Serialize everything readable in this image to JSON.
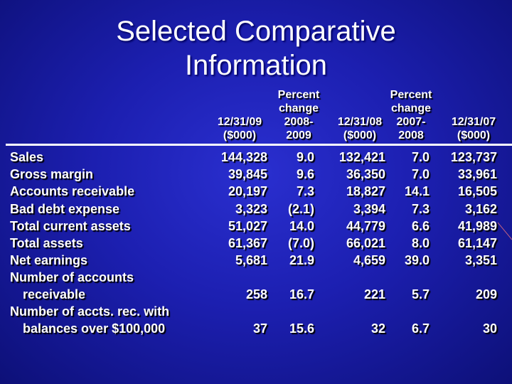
{
  "title_line1": "Selected Comparative",
  "title_line2": "Information",
  "columns": [
    [
      "12/31/09",
      "($000)"
    ],
    [
      "Percent",
      "change",
      "2008-",
      "2009"
    ],
    [
      "12/31/08",
      "($000)"
    ],
    [
      "Percent",
      "change",
      "2007-",
      "2008"
    ],
    [
      "12/31/07",
      "($000)"
    ]
  ],
  "rows": [
    {
      "label": [
        "Sales"
      ],
      "values": [
        "144,328",
        "9.0",
        "132,421",
        "7.0",
        "123,737"
      ]
    },
    {
      "label": [
        "Gross margin"
      ],
      "values": [
        "39,845",
        "9.6",
        "36,350",
        "7.0",
        "33,961"
      ]
    },
    {
      "label": [
        "Accounts receivable"
      ],
      "values": [
        "20,197",
        "7.3",
        "18,827",
        "14.1",
        "16,505"
      ]
    },
    {
      "label": [
        "Bad debt expense"
      ],
      "values": [
        "3,323",
        "(2.1)",
        "3,394",
        "7.3",
        "3,162"
      ]
    },
    {
      "label": [
        "Total current assets"
      ],
      "values": [
        "51,027",
        "14.0",
        "44,779",
        "6.6",
        "41,989"
      ]
    },
    {
      "label": [
        "Total assets"
      ],
      "values": [
        "61,367",
        "(7.0)",
        "66,021",
        "8.0",
        "61,147"
      ]
    },
    {
      "label": [
        "Net earnings"
      ],
      "values": [
        "5,681",
        "21.9",
        "4,659",
        "39.0",
        "3,351"
      ]
    },
    {
      "label": [
        "Number of accounts",
        "receivable"
      ],
      "values": [
        "258",
        "16.7",
        "221",
        "5.7",
        "209"
      ]
    },
    {
      "label": [
        "Number of accts. rec. with",
        "balances over $100,000"
      ],
      "values": [
        "37",
        "15.6",
        "32",
        "6.7",
        "30"
      ]
    }
  ]
}
